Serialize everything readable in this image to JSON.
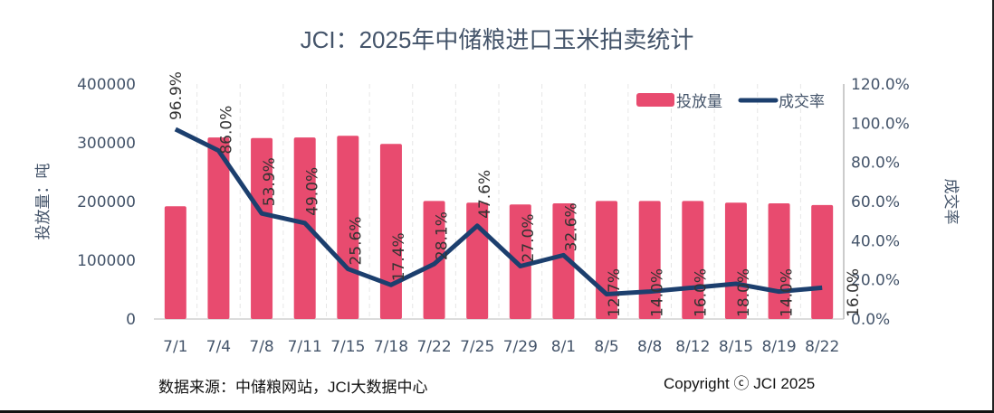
{
  "title": "JCI：2025年中储粮进口玉米拍卖统计",
  "source": "数据来源：中储粮网站，JCI大数据中心",
  "copyright": "Copyright ⓒ JCI 2025",
  "colors": {
    "bar": "#e84b6f",
    "line": "#1c3f6e",
    "text": "#44546a"
  },
  "chart_data": {
    "type": "bar+line",
    "title": "JCI：2025年中储粮进口玉米拍卖统计",
    "categories": [
      "7/1",
      "7/4",
      "7/8",
      "7/11",
      "7/15",
      "7/18",
      "7/22",
      "7/25",
      "7/29",
      "8/1",
      "8/5",
      "8/8",
      "8/12",
      "8/15",
      "8/19",
      "8/22"
    ],
    "series": [
      {
        "name": "投放量",
        "type": "bar",
        "axis": "left",
        "values": [
          192000,
          309000,
          308000,
          309000,
          312000,
          298000,
          201000,
          198000,
          195000,
          197000,
          201000,
          201000,
          201000,
          198000,
          197000,
          194000
        ]
      },
      {
        "name": "成交率",
        "type": "line",
        "axis": "right",
        "values": [
          96.9,
          86.0,
          53.9,
          49.0,
          25.6,
          17.4,
          28.1,
          47.6,
          27.0,
          32.6,
          12.7,
          14.0,
          16.0,
          18.0,
          14.0,
          16.0
        ],
        "labels": [
          "96.9%",
          "86.0%",
          "53.9%",
          "49.0%",
          "25.6%",
          "17.4%",
          "28.1%",
          "47.6%",
          "27.0%",
          "32.6%",
          "12.7%",
          "14.0%",
          "16.0%",
          "18.0%",
          "14.0%",
          "16.0%"
        ]
      }
    ],
    "ylabel": "投放量：吨",
    "y2label": "成交率",
    "ylim": [
      0,
      400000
    ],
    "y2lim": [
      0,
      120
    ],
    "yticks": [
      "0",
      "100000",
      "200000",
      "300000",
      "400000"
    ],
    "y2ticks": [
      "0.0%",
      "20.0%",
      "40.0%",
      "60.0%",
      "80.0%",
      "100.0%",
      "120.0%"
    ],
    "legend": {
      "position": "top-right",
      "entries": [
        "投放量",
        "成交率"
      ]
    }
  }
}
